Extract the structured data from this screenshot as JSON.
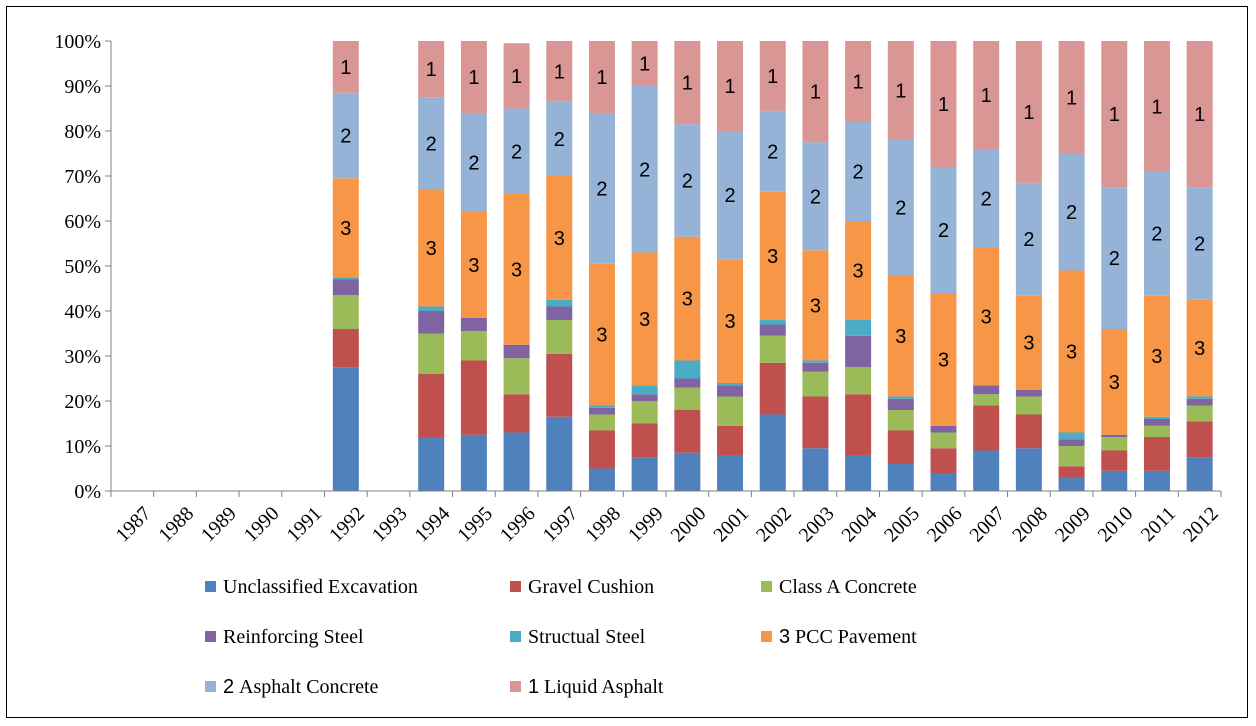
{
  "chart_data": {
    "type": "bar",
    "stacked": true,
    "normalized": true,
    "title": "",
    "xlabel": "",
    "ylabel": "",
    "ylim": [
      0,
      100
    ],
    "y_tick_labels": [
      "0%",
      "10%",
      "20%",
      "30%",
      "40%",
      "50%",
      "60%",
      "70%",
      "80%",
      "90%",
      "100%"
    ],
    "grid": false,
    "legend_position": "bottom",
    "categories": [
      "1987",
      "1988",
      "1989",
      "1990",
      "1991",
      "1992",
      "1993",
      "1994",
      "1995",
      "1996",
      "1997",
      "1998",
      "1999",
      "2000",
      "2001",
      "2002",
      "2003",
      "2004",
      "2005",
      "2006",
      "2007",
      "2008",
      "2009",
      "2010",
      "2011",
      "2012"
    ],
    "series": [
      {
        "name": "Unclassified Excavation",
        "color": "#4f81bd",
        "label": "",
        "values": [
          0,
          0,
          0,
          0,
          0,
          27.5,
          0,
          12,
          12.5,
          13,
          16.5,
          5,
          7.5,
          8.5,
          8,
          17,
          9.5,
          8,
          6,
          4,
          9,
          9.5,
          3,
          4.5,
          4.5,
          7.5
        ]
      },
      {
        "name": "Gravel Cushion",
        "color": "#c0504d",
        "label": "",
        "values": [
          0,
          0,
          0,
          0,
          0,
          8.5,
          0,
          14,
          16.5,
          8.5,
          14,
          8.5,
          7.5,
          9.5,
          6.5,
          11.5,
          11.5,
          13.5,
          7.5,
          5.5,
          10,
          7.5,
          2.5,
          4.5,
          7.5,
          8
        ]
      },
      {
        "name": "Class A Concrete",
        "color": "#9bbb59",
        "label": "",
        "values": [
          0,
          0,
          0,
          0,
          0,
          7.5,
          0,
          9,
          6.5,
          8,
          7.5,
          3.5,
          5,
          5,
          6.5,
          6,
          5.5,
          6,
          4.5,
          3.5,
          2.5,
          4,
          4.5,
          3,
          2.5,
          3.5
        ]
      },
      {
        "name": "Reinforcing Steel",
        "color": "#8064a2",
        "label": "",
        "values": [
          0,
          0,
          0,
          0,
          0,
          3.5,
          0,
          5,
          3,
          3,
          3,
          1.5,
          1.5,
          2,
          2.5,
          2.5,
          2,
          7,
          2.5,
          1.5,
          2,
          1.5,
          1.5,
          0.5,
          1.5,
          1.5
        ]
      },
      {
        "name": "Structual Steel",
        "color": "#4bacc6",
        "label": "",
        "values": [
          0,
          0,
          0,
          0,
          0,
          0.5,
          0,
          1,
          0,
          0,
          1.5,
          0.5,
          2,
          4,
          0.5,
          1,
          0.5,
          3.5,
          0.5,
          0,
          0,
          0,
          1.5,
          0,
          0.5,
          0.5
        ]
      },
      {
        "name": "PCC Pavement",
        "color": "#f79646",
        "label": "3",
        "values": [
          0,
          0,
          0,
          0,
          0,
          22,
          0,
          26,
          23.5,
          33.5,
          27.5,
          31.5,
          29.5,
          27.5,
          27.5,
          28.5,
          24.5,
          22,
          27,
          29.5,
          30.5,
          21,
          36,
          23.5,
          27,
          21.5
        ]
      },
      {
        "name": "Asphalt Concrete",
        "color": "#95b3d7",
        "label": "2",
        "values": [
          0,
          0,
          0,
          0,
          0,
          19,
          0,
          20.5,
          22,
          19,
          16.5,
          33.5,
          37,
          25,
          28.5,
          18,
          24,
          22,
          30,
          28,
          22,
          25,
          26,
          31.5,
          27.5,
          25
        ]
      },
      {
        "name": "Liquid Asphalt",
        "color": "#da9694",
        "label": "1",
        "values": [
          0,
          0,
          0,
          0,
          0,
          11.5,
          0,
          12.5,
          16,
          14.5,
          13.5,
          16,
          10,
          18.5,
          20,
          15.5,
          22.5,
          18,
          22,
          28,
          24,
          31.5,
          25,
          32.5,
          29,
          32.5
        ]
      }
    ]
  }
}
